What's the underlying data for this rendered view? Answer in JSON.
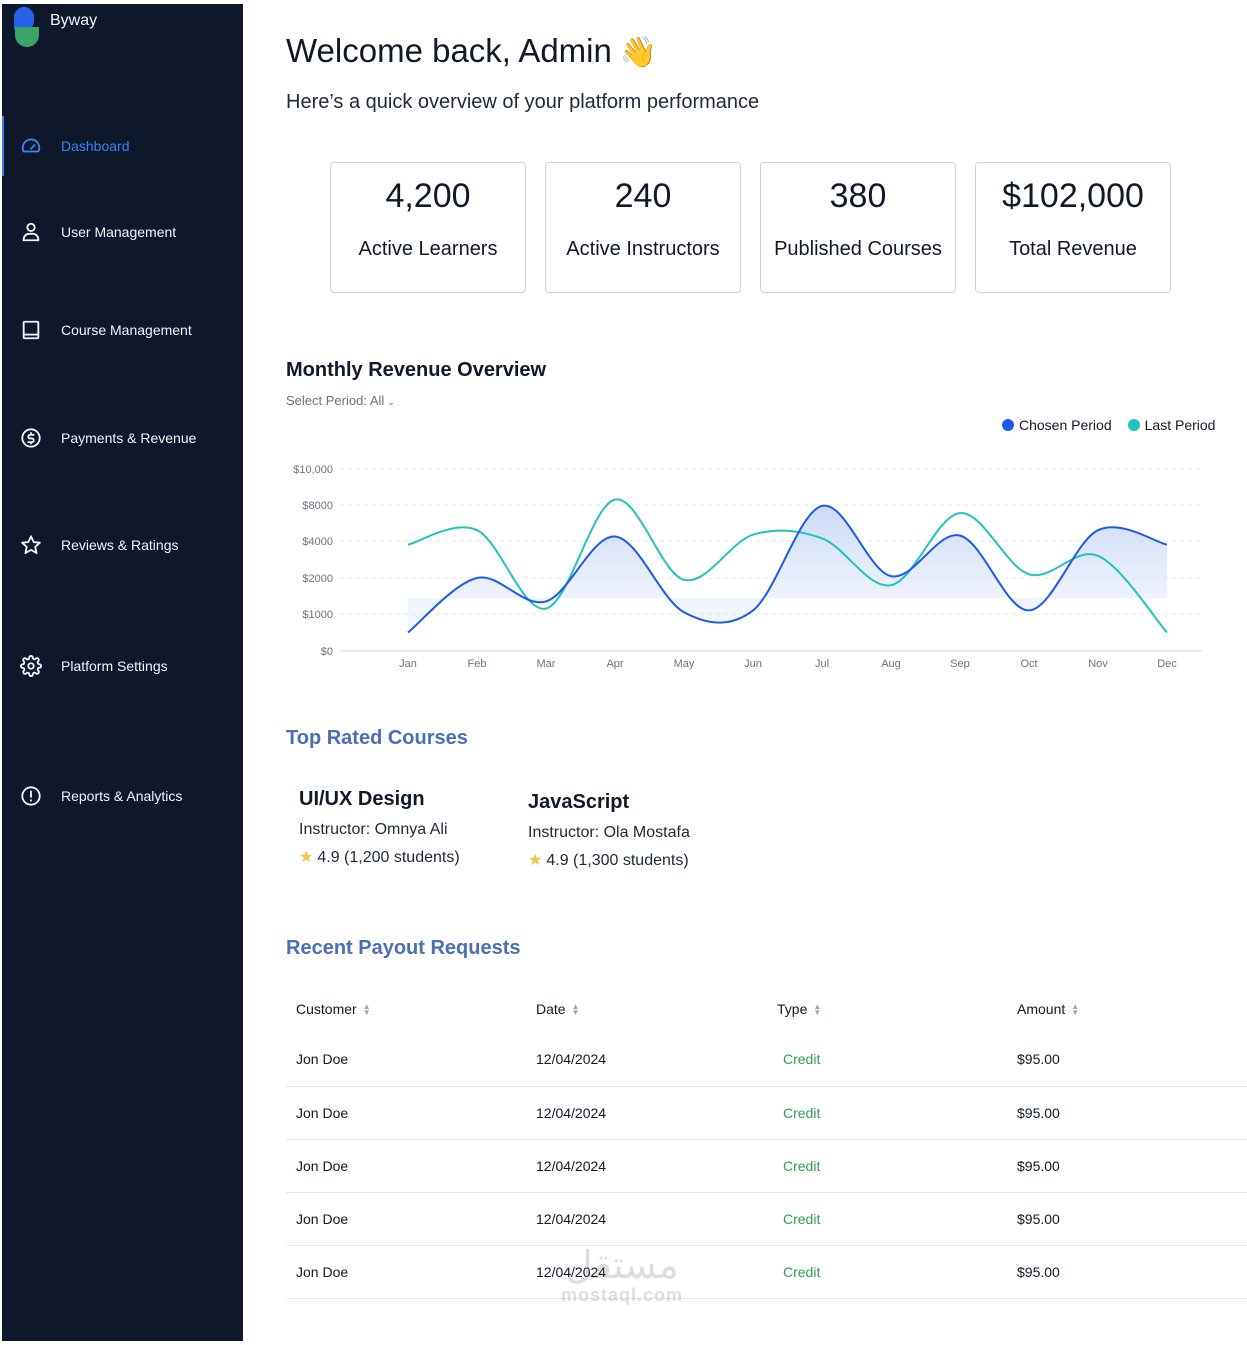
{
  "app": {
    "name": "Byway"
  },
  "sidebar": {
    "items": [
      {
        "label": "Dashboard",
        "icon": "gauge-icon",
        "active": true
      },
      {
        "label": "User Management",
        "icon": "user-icon"
      },
      {
        "label": "Course Management",
        "icon": "book-icon"
      },
      {
        "label": "Payments & Revenue",
        "icon": "dollar-circle-icon"
      },
      {
        "label": "Reviews & Ratings",
        "icon": "star-icon"
      },
      {
        "label": "Platform Settings",
        "icon": "gear-icon"
      },
      {
        "label": "Reports & Analytics",
        "icon": "alert-circle-icon"
      }
    ]
  },
  "header": {
    "title": "Welcome back, Admin",
    "wave_emoji": "👋",
    "subtitle": "Here’s a quick overview of your platform performance"
  },
  "stats": [
    {
      "value": "4,200",
      "label": "Active Learners"
    },
    {
      "value": "240",
      "label": "Active Instructors"
    },
    {
      "value": "380",
      "label": "Published Courses"
    },
    {
      "value": "$102,000",
      "label": "Total Revenue"
    }
  ],
  "revenue": {
    "title": "Monthly Revenue Overview",
    "period_label": "Select Period:",
    "period_value": "All"
  },
  "chart_data": {
    "type": "line",
    "x": [
      "Jan",
      "Feb",
      "Mar",
      "Apr",
      "May",
      "Jun",
      "Jul",
      "Aug",
      "Sep",
      "Oct",
      "Nov",
      "Dec"
    ],
    "y_ticks": [
      "$0",
      "$1000",
      "$2000",
      "$4000",
      "$8000",
      "$10,000"
    ],
    "series": [
      {
        "name": "Chosen Period",
        "color": "#1d5ae8",
        "values": [
          500,
          2000,
          1350,
          4500,
          1050,
          1100,
          7900,
          2100,
          4600,
          1100,
          5200,
          3800
        ]
      },
      {
        "name": "Last Period",
        "color": "#22c2bb",
        "values": [
          3800,
          5200,
          1150,
          8300,
          1950,
          4700,
          4300,
          1800,
          7100,
          2200,
          3200,
          500
        ]
      }
    ],
    "legend_position": "top-right",
    "grid": true,
    "area_fill_under": "Chosen Period"
  },
  "top_courses": {
    "title": "Top Rated Courses",
    "items": [
      {
        "name": "UI/UX Design",
        "instructor": "Instructor: Omnya Ali",
        "rating": "4.9 (1,200 students)"
      },
      {
        "name": "JavaScript",
        "instructor": "Instructor: Ola Mostafa",
        "rating": "4.9 (1,300 students)"
      }
    ]
  },
  "payouts": {
    "title": "Recent Payout Requests",
    "columns": [
      "Customer",
      "Date",
      "Type",
      "Amount"
    ],
    "rows": [
      [
        "Jon Doe",
        "12/04/2024",
        "Credit",
        "$95.00"
      ],
      [
        "Jon Doe",
        "12/04/2024",
        "Credit",
        "$95.00"
      ],
      [
        "Jon Doe",
        "12/04/2024",
        "Credit",
        "$95.00"
      ],
      [
        "Jon Doe",
        "12/04/2024",
        "Credit",
        "$95.00"
      ],
      [
        "Jon Doe",
        "12/04/2024",
        "Credit",
        "$95.00"
      ]
    ]
  },
  "watermark": {
    "arabic": "مستقل",
    "latin": "mostaql.com"
  }
}
